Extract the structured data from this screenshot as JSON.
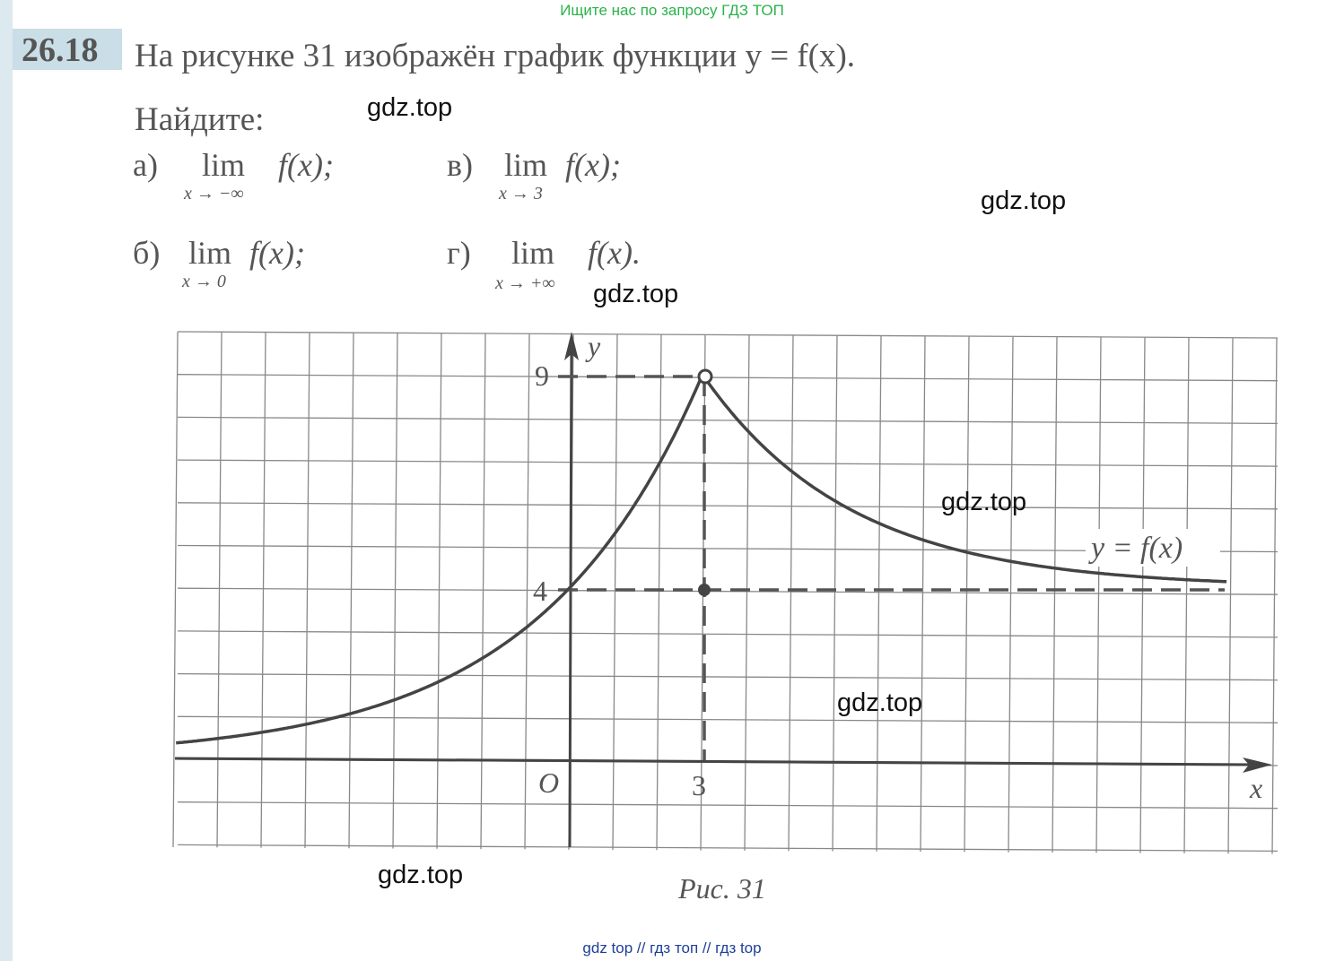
{
  "header": {
    "banner": "Ищите нас по запросу ГДЗ ТОП"
  },
  "problem": {
    "number": "26.18",
    "statement": "На рисунке 31 изображён график функции y = f(x).",
    "prompt": "Найдите:",
    "items": [
      {
        "label": "а)",
        "lim": "lim",
        "under": "x → −∞",
        "expr": "f(x);"
      },
      {
        "label": "в)",
        "lim": "lim",
        "under": "x → 3",
        "expr": "f(x);"
      },
      {
        "label": "б)",
        "lim": "lim",
        "under": "x → 0",
        "expr": "f(x);"
      },
      {
        "label": "г)",
        "lim": "lim",
        "under": "x → +∞",
        "expr": "f(x)."
      }
    ]
  },
  "figure": {
    "y_axis": "y",
    "x_axis": "x",
    "origin": "O",
    "tick_9": "9",
    "tick_4": "4",
    "tick_3": "3",
    "curve_label": "y = f(x)",
    "caption": "Рис. 31"
  },
  "watermarks": [
    "gdz.top",
    "gdz.top",
    "gdz.top",
    "gdz.top",
    "gdz.top",
    "gdz.top"
  ],
  "footer": "gdz top // гдз топ // гдз top"
}
